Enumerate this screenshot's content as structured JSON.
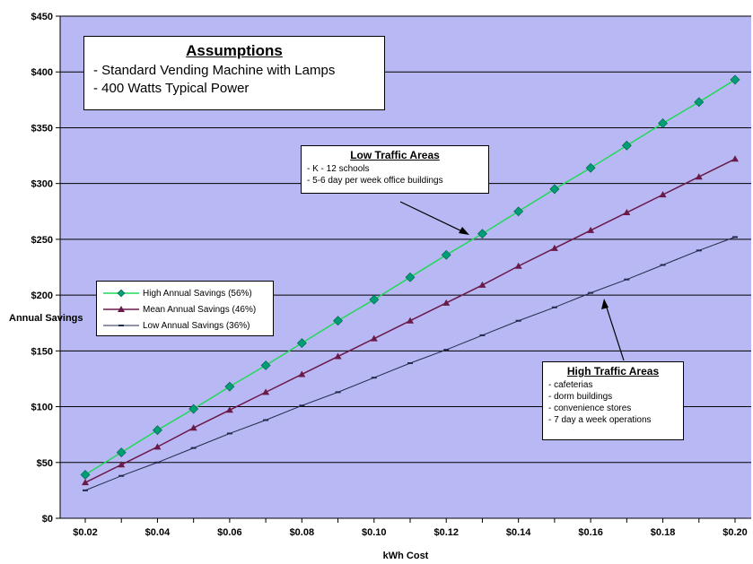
{
  "chart_data": {
    "type": "line",
    "xlabel": "kWh Cost",
    "ylabel": "Annual Savings",
    "xlim": [
      0.02,
      0.2
    ],
    "ylim": [
      0,
      450
    ],
    "grid": true,
    "legend_position": "left",
    "x_tick_labels": [
      "$0.02",
      "$0.04",
      "$0.06",
      "$0.08",
      "$0.10",
      "$0.12",
      "$0.14",
      "$0.16",
      "$0.18",
      "$0.20"
    ],
    "y_tick_labels": [
      "$0",
      "$50",
      "$100",
      "$150",
      "$200",
      "$250",
      "$300",
      "$350",
      "$400",
      "$450"
    ],
    "x": [
      0.02,
      0.03,
      0.04,
      0.05,
      0.06,
      0.07,
      0.08,
      0.09,
      0.1,
      0.11,
      0.12,
      0.13,
      0.14,
      0.15,
      0.16,
      0.17,
      0.18,
      0.19,
      0.2
    ],
    "series": [
      {
        "name": "High Annual Savings (56%)",
        "color": "#22d85a",
        "marker": "diamond",
        "values": [
          39,
          59,
          79,
          98,
          118,
          137,
          157,
          177,
          196,
          216,
          236,
          255,
          275,
          295,
          314,
          334,
          354,
          373,
          393
        ]
      },
      {
        "name": "Mean Annual Savings (46%)",
        "color": "#6a1a48",
        "marker": "triangle",
        "values": [
          32,
          48,
          64,
          81,
          97,
          113,
          129,
          145,
          161,
          177,
          193,
          209,
          226,
          242,
          258,
          274,
          290,
          306,
          322
        ]
      },
      {
        "name": "Low Annual Savings (36%)",
        "color": "#1f2b4a",
        "marker": "dash",
        "values": [
          25,
          38,
          50,
          63,
          76,
          88,
          101,
          113,
          126,
          139,
          151,
          164,
          177,
          189,
          202,
          214,
          227,
          240,
          252
        ]
      }
    ],
    "annotations": {
      "assumptions": {
        "title": "Assumptions",
        "lines": [
          "- Standard Vending Machine with Lamps",
          "- 400 Watts Typical Power"
        ]
      },
      "low_traffic": {
        "title": "Low Traffic Areas",
        "lines": [
          "- K - 12 schools",
          "- 5-6 day per week office buildings"
        ]
      },
      "high_traffic": {
        "title": "High Traffic Areas",
        "lines": [
          "- cafeterias",
          "- dorm buildings",
          "- convenience stores",
          "- 7 day a week operations"
        ]
      }
    },
    "colors": {
      "plot_background": "#b8b8f4",
      "gridline": "#000000"
    }
  }
}
